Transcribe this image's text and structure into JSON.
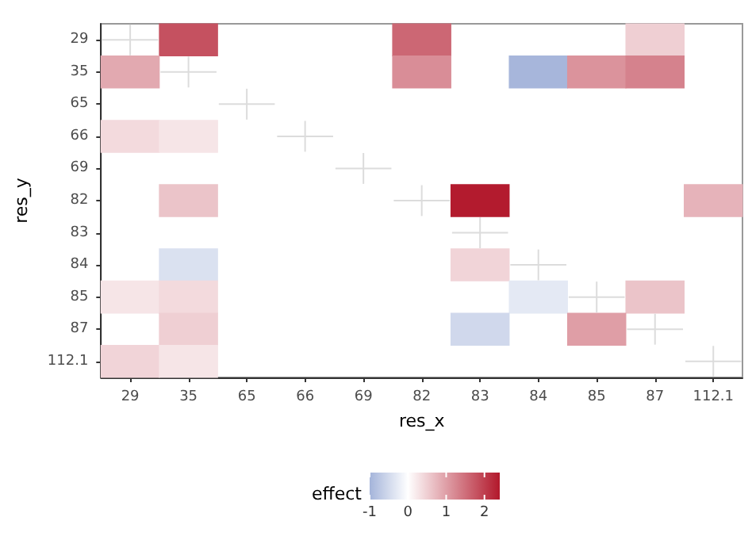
{
  "chart_data": {
    "type": "heatmap",
    "xlabel": "res_x",
    "ylabel": "res_y",
    "clabel": "effect",
    "categories": [
      "29",
      "35",
      "65",
      "66",
      "69",
      "82",
      "83",
      "84",
      "85",
      "87",
      "112.1"
    ],
    "y_categories": [
      "29",
      "35",
      "65",
      "66",
      "69",
      "82",
      "83",
      "84",
      "85",
      "87",
      "112.1"
    ],
    "cells": [
      [
        null,
        1.8,
        null,
        null,
        null,
        1.6,
        null,
        null,
        null,
        0.5,
        null
      ],
      [
        0.9,
        null,
        null,
        null,
        null,
        1.2,
        null,
        -1,
        1.1,
        1.3,
        null
      ],
      [
        null,
        null,
        null,
        null,
        null,
        null,
        null,
        null,
        null,
        null,
        null
      ],
      [
        0.4,
        0.3,
        null,
        null,
        null,
        null,
        null,
        null,
        null,
        null,
        null
      ],
      [
        null,
        null,
        null,
        null,
        null,
        null,
        null,
        null,
        null,
        null,
        null
      ],
      [
        null,
        0.6,
        null,
        null,
        null,
        null,
        2.4,
        null,
        null,
        null,
        0.8
      ],
      [
        null,
        null,
        null,
        null,
        null,
        null,
        null,
        null,
        null,
        null,
        null
      ],
      [
        null,
        -0.4,
        null,
        null,
        null,
        null,
        0.45,
        null,
        null,
        null,
        null
      ],
      [
        0.3,
        0.4,
        null,
        null,
        null,
        null,
        null,
        -0.3,
        null,
        0.6,
        null
      ],
      [
        null,
        0.5,
        null,
        null,
        null,
        null,
        -0.5,
        null,
        1.0,
        null,
        null
      ],
      [
        0.45,
        0.25,
        null,
        null,
        null,
        null,
        null,
        null,
        null,
        null,
        null
      ]
    ],
    "clim": [
      -1,
      2.4
    ],
    "cticks": [
      -1,
      0,
      1,
      2
    ],
    "grid": false
  }
}
